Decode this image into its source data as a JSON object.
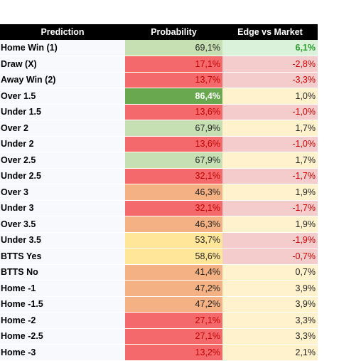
{
  "table": {
    "header": [
      "Prediction",
      "Probability",
      "Edge vs Market"
    ],
    "rows": [
      [
        "Home Win (1)",
        "69,1%",
        "6,1%"
      ],
      [
        "Draw (X)",
        "17,1%",
        "-2,8%"
      ],
      [
        "Away Win (2)",
        "13,7%",
        "-3,3%"
      ],
      [
        "Over 1.5",
        "86,4%",
        "1,0%"
      ],
      [
        "Under 1.5",
        "13,6%",
        "-1,0%"
      ],
      [
        "Over 2",
        "67,9%",
        "1,7%"
      ],
      [
        "Under 2",
        "13,6%",
        "-1,0%"
      ],
      [
        "Over 2.5",
        "67,9%",
        "1,7%"
      ],
      [
        "Under 2.5",
        "32,1%",
        "-1,7%"
      ],
      [
        "Over 3",
        "46,3%",
        "1,9%"
      ],
      [
        "Under 3",
        "32,1%",
        "-1,7%"
      ],
      [
        "Over 3.5",
        "46,3%",
        "1,9%"
      ],
      [
        "Under 3.5",
        "53,7%",
        "-1,9%"
      ],
      [
        "BTTS Yes",
        "58,6%",
        "-0,7%"
      ],
      [
        "BTTS No",
        "41,4%",
        "0,7%"
      ],
      [
        "Home -1",
        "47,2%",
        "3,9%"
      ],
      [
        "Home -1.5",
        "47,2%",
        "3,9%"
      ],
      [
        "Home -2",
        "27,1%",
        "3,3%"
      ],
      [
        "Home -2.5",
        "27,1%",
        "3,3%"
      ],
      [
        "Home -3",
        "13,2%",
        "2,1%"
      ]
    ]
  }
}
